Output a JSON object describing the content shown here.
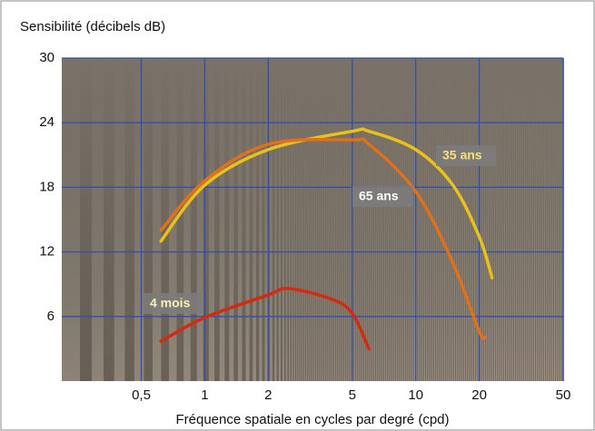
{
  "chart_data": {
    "type": "line",
    "y_axis_label": "Sensibilité (décibels dB)",
    "x_axis_label": "Fréquence spatiale en cycles par degré (cpd)",
    "x_scale": "log",
    "xlim": [
      0.21,
      50
    ],
    "xticks": [
      {
        "value": 0.5,
        "label": "0,5"
      },
      1,
      2,
      5,
      10,
      20,
      50
    ],
    "ylim": [
      0,
      30
    ],
    "yticks": [
      6,
      12,
      18,
      24,
      30
    ],
    "grid": true,
    "series": [
      {
        "name": "35 ans",
        "color": "#e8c21a",
        "x": [
          0.62,
          1,
          2,
          5,
          6,
          10,
          15,
          20,
          23
        ],
        "values": [
          13.0,
          18.2,
          21.5,
          23.2,
          23.2,
          21.5,
          18.2,
          13.4,
          9.6
        ]
      },
      {
        "name": "65 ans",
        "color": "#e0701a",
        "x": [
          0.62,
          1,
          2,
          5,
          6,
          10,
          15,
          20,
          21.3
        ],
        "values": [
          14.0,
          18.6,
          22.0,
          22.4,
          22.0,
          17.6,
          11.0,
          4.6,
          4.1
        ]
      },
      {
        "name": "4 mois",
        "color": "#d42a10",
        "x": [
          0.62,
          1,
          2,
          2.5,
          4,
          5,
          6
        ],
        "values": [
          3.7,
          5.9,
          8.0,
          8.6,
          7.6,
          6.3,
          3.0
        ]
      }
    ]
  }
}
